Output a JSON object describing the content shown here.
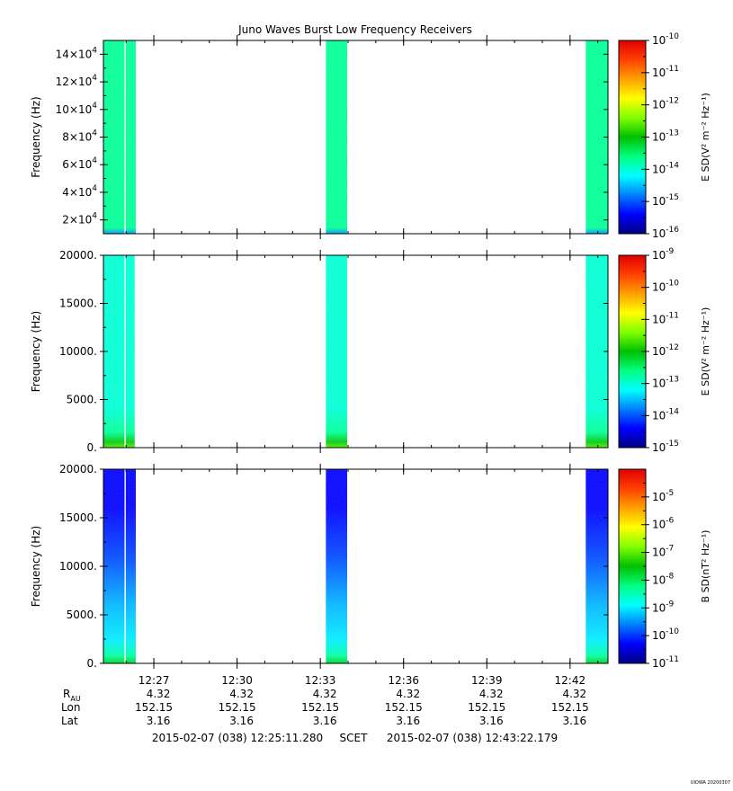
{
  "title": "Juno Waves Burst Low Frequency Receivers",
  "colors": {
    "axis": "#000000",
    "colormap": [
      "#000080",
      "#0000ff",
      "#0080ff",
      "#00ffff",
      "#00ff80",
      "#00c000",
      "#80ff00",
      "#ffff00",
      "#ffa000",
      "#ff4000",
      "#e00000"
    ]
  },
  "chart_data": [
    {
      "type": "heatmap",
      "ylabel": "Frequency (Hz)",
      "ylim": [
        10000,
        150000
      ],
      "yticks": [
        {
          "value": 20000,
          "mant": "2×10",
          "exp": "4"
        },
        {
          "value": 40000,
          "mant": "4×10",
          "exp": "4"
        },
        {
          "value": 60000,
          "mant": "6×10",
          "exp": "4"
        },
        {
          "value": 80000,
          "mant": "8×10",
          "exp": "4"
        },
        {
          "value": 100000,
          "mant": "10×10",
          "exp": "4"
        },
        {
          "value": 120000,
          "mant": "12×10",
          "exp": "4"
        },
        {
          "value": 140000,
          "mant": "14×10",
          "exp": "4"
        }
      ],
      "bursts": [
        {
          "start": "12:25:11",
          "end": "12:26:21"
        },
        {
          "start": "12:33:12",
          "end": "12:33:58"
        },
        {
          "start": "12:42:34",
          "end": "12:43:22"
        }
      ],
      "gaps": [
        "12:25:58"
      ],
      "colorbar": {
        "label": "E SD(V² m⁻² Hz⁻¹)",
        "range_exp": [
          -16,
          -10
        ],
        "ticks": [
          -10,
          -11,
          -12,
          -13,
          -14,
          -15,
          -16
        ]
      },
      "dominant_level_exp": -13.7
    },
    {
      "type": "heatmap",
      "ylabel": "Frequency (Hz)",
      "ylim": [
        0,
        20000
      ],
      "yticks": [
        {
          "value": 0,
          "label": "0."
        },
        {
          "value": 5000,
          "label": "5000."
        },
        {
          "value": 10000,
          "label": "10000."
        },
        {
          "value": 15000,
          "label": "15000."
        },
        {
          "value": 20000,
          "label": "20000."
        }
      ],
      "bursts": [
        {
          "start": "12:25:11",
          "end": "12:26:21"
        },
        {
          "start": "12:33:12",
          "end": "12:33:58"
        },
        {
          "start": "12:42:34",
          "end": "12:43:22"
        }
      ],
      "gaps": [
        "12:25:58",
        "12:26:20"
      ],
      "colorbar": {
        "label": "E SD(V² m⁻² Hz⁻¹)",
        "range_exp": [
          -15,
          -9
        ],
        "ticks": [
          -9,
          -10,
          -11,
          -12,
          -13,
          -14,
          -15
        ]
      },
      "dominant_level_exp": -13.0
    },
    {
      "type": "heatmap",
      "ylabel": "Frequency (Hz)",
      "ylim": [
        0,
        20000
      ],
      "yticks": [
        {
          "value": 0,
          "label": "0."
        },
        {
          "value": 5000,
          "label": "5000."
        },
        {
          "value": 10000,
          "label": "10000."
        },
        {
          "value": 15000,
          "label": "15000."
        },
        {
          "value": 20000,
          "label": "20000."
        }
      ],
      "bursts": [
        {
          "start": "12:25:11",
          "end": "12:26:21"
        },
        {
          "start": "12:33:12",
          "end": "12:33:58"
        },
        {
          "start": "12:42:34",
          "end": "12:43:22"
        }
      ],
      "gaps": [
        "12:25:58"
      ],
      "colorbar": {
        "label": "B SD(nT² Hz⁻¹)",
        "range_exp": [
          -11,
          -4
        ],
        "ticks": [
          -5,
          -6,
          -7,
          -8,
          -9,
          -10,
          -11
        ]
      },
      "dominant_level_exp": -10.3
    }
  ],
  "x_axis": {
    "range": [
      "12:25:11",
      "12:43:22"
    ],
    "ticks": [
      {
        "time": "12:27",
        "R": "4.32",
        "Lon": "152.15",
        "Lat": "3.16"
      },
      {
        "time": "12:30",
        "R": "4.32",
        "Lon": "152.15",
        "Lat": "3.16"
      },
      {
        "time": "12:33",
        "R": "4.32",
        "Lon": "152.15",
        "Lat": "3.16"
      },
      {
        "time": "12:36",
        "R": "4.32",
        "Lon": "152.15",
        "Lat": "3.16"
      },
      {
        "time": "12:39",
        "R": "4.32",
        "Lon": "152.15",
        "Lat": "3.16"
      },
      {
        "time": "12:42",
        "R": "4.32",
        "Lon": "152.15",
        "Lat": "3.16"
      }
    ],
    "row_labels": {
      "r_main": "R",
      "r_sub": "AU",
      "lon": "Lon",
      "lat": "Lat"
    }
  },
  "time_range_text": {
    "start": "2015-02-07 (038) 12:25:11.280",
    "frame": "SCET",
    "end": "2015-02-07 (038) 12:43:22.179"
  },
  "footer": "UIOWA 20200307"
}
